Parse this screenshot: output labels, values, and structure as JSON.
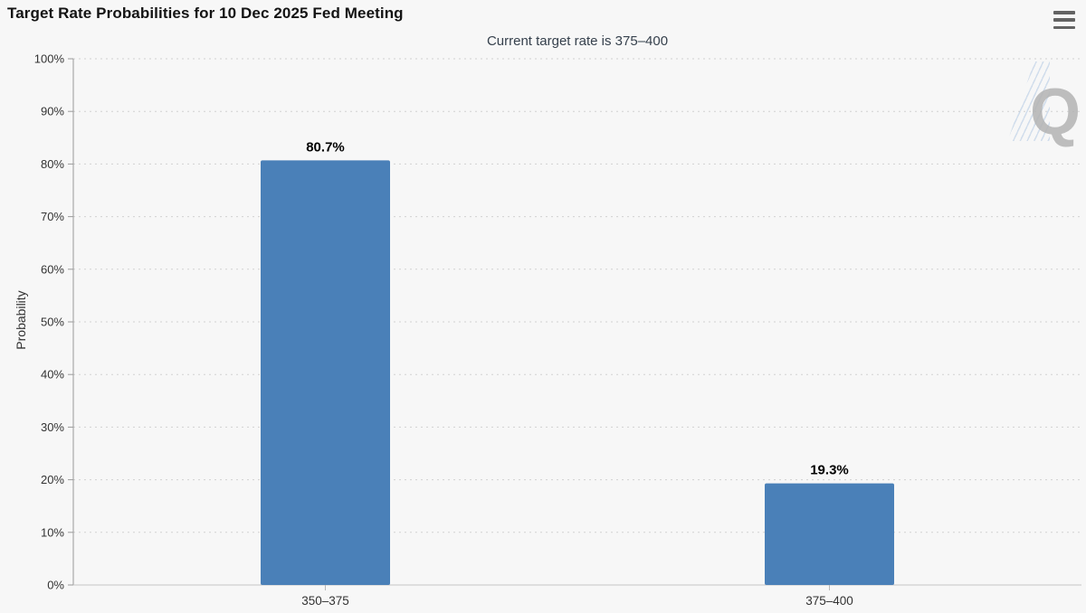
{
  "header": {
    "title": "Target Rate Probabilities for 10 Dec 2025 Fed Meeting",
    "menu_icon": "hamburger-icon"
  },
  "chart_data": {
    "type": "bar",
    "title": "Target Rate Probabilities for 10 Dec 2025 Fed Meeting",
    "subtitle": "Current target rate is 375–400",
    "categories": [
      "350–375",
      "375–400"
    ],
    "values": [
      80.7,
      19.3
    ],
    "value_labels": [
      "80.7%",
      "19.3%"
    ],
    "xlabel": "",
    "ylabel": "Probability",
    "ylim": [
      0,
      100
    ],
    "ytick_step": 10,
    "ytick_labels": [
      "0%",
      "10%",
      "20%",
      "30%",
      "40%",
      "50%",
      "60%",
      "70%",
      "80%",
      "90%",
      "100%"
    ],
    "grid": "dotted-horizontal",
    "legend": "none",
    "bar_color": "#4A80B8",
    "background_color": "#f7f7f7",
    "axis_text_color": "#333333",
    "label_text_color": "#000000"
  },
  "watermark": {
    "letter": "Q"
  }
}
